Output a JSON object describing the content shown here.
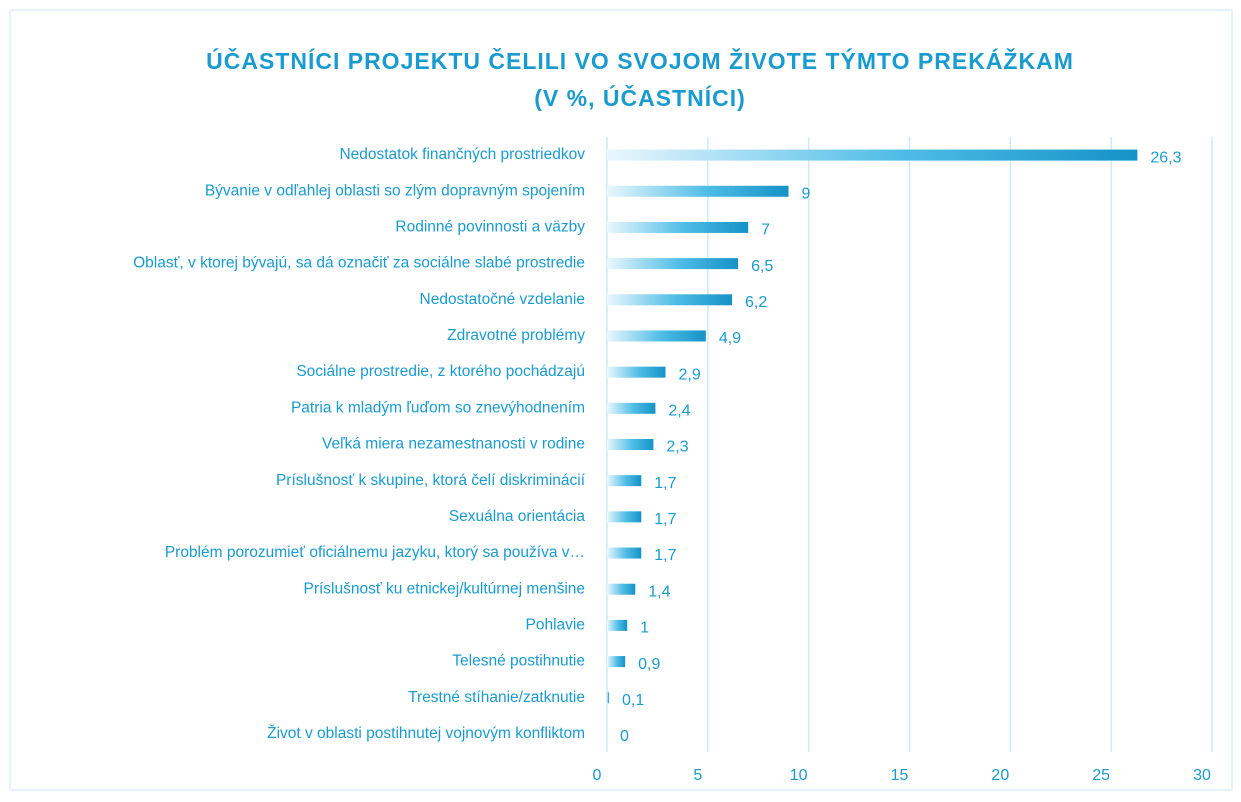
{
  "chart_data": {
    "type": "bar",
    "orientation": "horizontal",
    "title": [
      "ÚČASTNÍCI PROJEKTU ČELILI VO SVOJOM ŽIVOTE TÝMTO PREKÁŽKAM",
      "(V %, ÚČASTNÍCI)"
    ],
    "categories": [
      "Nedostatok finančných prostriedkov",
      "Bývanie v odľahlej oblasti so zlým dopravným spojením",
      "Rodinné povinnosti a väzby",
      "Oblasť, v ktorej bývajú, sa dá označiť za sociálne slabé prostredie",
      "Nedostatočné vzdelanie",
      "Zdravotné problémy",
      "Sociálne prostredie, z ktorého pochádzajú",
      "Patria k mladým ľuďom so znevýhodnením",
      "Veľká miera nezamestnanosti v rodine",
      "Príslušnosť k skupine, ktorá čelí diskriminácií",
      "Sexuálna orientácia",
      "Problém porozumieť oficiálnemu jazyku, ktorý sa používa v…",
      "Príslušnosť ku etnickej/kultúrnej menšine",
      "Pohlavie",
      "Telesné postihnutie",
      "Trestné stíhanie/zatknutie",
      "Život v oblasti postihnutej vojnovým konfliktom"
    ],
    "values": [
      26.3,
      9,
      7,
      6.5,
      6.2,
      4.9,
      2.9,
      2.4,
      2.3,
      1.7,
      1.7,
      1.7,
      1.4,
      1,
      0.9,
      0.1,
      0
    ],
    "value_labels": [
      "26,3",
      "9",
      "7",
      "6,5",
      "6,2",
      "4,9",
      "2,9",
      "2,4",
      "2,3",
      "1,7",
      "1,7",
      "1,7",
      "1,4",
      "1",
      "0,9",
      "0,1",
      "0"
    ],
    "color": "#1a9bd0",
    "xlim": [
      0,
      30
    ],
    "xticks": [
      0,
      5,
      10,
      15,
      20,
      25,
      30
    ],
    "grid": true
  }
}
